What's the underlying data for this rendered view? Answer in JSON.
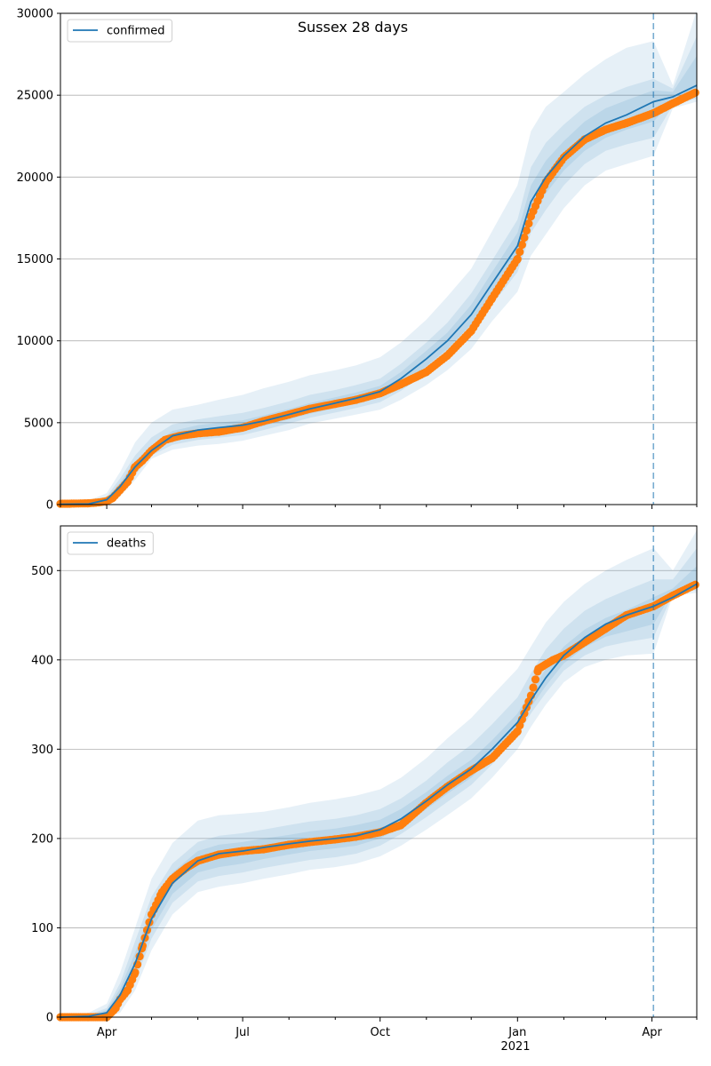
{
  "figure_title": "Sussex 28 days",
  "colors": {
    "model": "#1f77b4",
    "observed": "#ff7f0e",
    "band": "#1f77b4",
    "vline": "#1f77b4",
    "grid": "#b0b0b0"
  },
  "x_axis": {
    "ticks": [
      {
        "label": "Apr",
        "date": "2020-04-01"
      },
      {
        "label": "Jul",
        "date": "2020-07-01"
      },
      {
        "label": "Oct",
        "date": "2020-10-01"
      },
      {
        "label": "Jan",
        "date": "2021-01-01"
      },
      {
        "label": "Apr",
        "date": "2021-04-01"
      }
    ],
    "minor_ticks": [
      "2020-03-01",
      "2020-05-01",
      "2020-06-01",
      "2020-08-01",
      "2020-09-01",
      "2020-11-01",
      "2020-12-01",
      "2021-02-01",
      "2021-03-01",
      "2021-05-01"
    ],
    "year_label": "2021",
    "range": [
      "2020-03-01",
      "2021-05-01"
    ]
  },
  "chart_data": [
    {
      "type": "line",
      "legend": "confirmed",
      "legend_position": "upper-left",
      "grid": "horizontal",
      "ylim": [
        0,
        30000
      ],
      "yticks": [
        "0",
        "5000",
        "10000",
        "15000",
        "20000",
        "25000",
        "30000"
      ],
      "forecast_start": "2021-04-02",
      "model": {
        "x": [
          "2020-03-01",
          "2020-03-20",
          "2020-04-01",
          "2020-04-10",
          "2020-04-20",
          "2020-05-01",
          "2020-05-15",
          "2020-06-01",
          "2020-06-15",
          "2020-07-01",
          "2020-07-15",
          "2020-08-01",
          "2020-08-15",
          "2020-09-01",
          "2020-09-15",
          "2020-10-01",
          "2020-10-15",
          "2020-11-01",
          "2020-11-15",
          "2020-12-01",
          "2020-12-15",
          "2021-01-01",
          "2021-01-10",
          "2021-01-20",
          "2021-02-01",
          "2021-02-15",
          "2021-03-01",
          "2021-03-15",
          "2021-04-02",
          "2021-04-15",
          "2021-05-01"
        ],
        "y": [
          20,
          40,
          300,
          1100,
          2300,
          3300,
          4200,
          4550,
          4700,
          4850,
          5100,
          5500,
          5850,
          6200,
          6500,
          6900,
          7700,
          8900,
          10000,
          11600,
          13500,
          15800,
          18500,
          20000,
          21300,
          22500,
          23300,
          23800,
          24600,
          24900,
          25600
        ]
      },
      "bands": [
        {
          "lower": [
            0,
            5,
            50,
            500,
            1500,
            2800,
            3350,
            3600,
            3700,
            3900,
            4200,
            4550,
            4950,
            5250,
            5500,
            5800,
            6400,
            7300,
            8200,
            9500,
            11200,
            13000,
            15200,
            16500,
            18100,
            19500,
            20400,
            20800,
            21300,
            24200,
            24600
          ],
          "upper": [
            150,
            250,
            700,
            2000,
            3800,
            5000,
            5800,
            6100,
            6400,
            6700,
            7100,
            7500,
            7900,
            8200,
            8500,
            9000,
            9900,
            11300,
            12700,
            14400,
            16700,
            19500,
            22800,
            24300,
            25200,
            26300,
            27200,
            27900,
            28300,
            25600,
            30200
          ]
        },
        {
          "lower": [
            5,
            15,
            100,
            700,
            1800,
            3000,
            3650,
            3950,
            4080,
            4250,
            4550,
            4950,
            5300,
            5620,
            5900,
            6250,
            6950,
            8000,
            9000,
            10400,
            12200,
            14200,
            16600,
            18000,
            19500,
            20800,
            21600,
            22000,
            22400,
            24400,
            24800
          ],
          "upper": [
            80,
            150,
            500,
            1600,
            3000,
            4100,
            4900,
            5200,
            5400,
            5600,
            5900,
            6300,
            6700,
            7000,
            7300,
            7700,
            8600,
            9900,
            11100,
            12900,
            14900,
            17400,
            20600,
            22100,
            23200,
            24300,
            25000,
            25500,
            26000,
            25400,
            28600
          ]
        },
        {
          "lower": [
            10,
            25,
            180,
            900,
            2000,
            3150,
            3950,
            4250,
            4400,
            4550,
            4800,
            5200,
            5550,
            5900,
            6200,
            6550,
            7300,
            8450,
            9500,
            11000,
            12800,
            15000,
            17500,
            19000,
            20400,
            21600,
            22400,
            22900,
            23400,
            24600,
            25000
          ],
          "upper": [
            40,
            80,
            400,
            1350,
            2650,
            3600,
            4500,
            4850,
            5000,
            5150,
            5450,
            5850,
            6200,
            6550,
            6850,
            7250,
            8100,
            9400,
            10500,
            12200,
            14200,
            16600,
            19500,
            21000,
            22200,
            23400,
            24200,
            24700,
            25300,
            25200,
            27400
          ]
        }
      ],
      "observed": {
        "x": [
          "2020-03-01",
          "2020-03-10",
          "2020-03-20",
          "2020-03-25",
          "2020-04-01",
          "2020-04-05",
          "2020-04-10",
          "2020-04-15",
          "2020-04-20",
          "2020-04-25",
          "2020-05-01",
          "2020-05-10",
          "2020-05-20",
          "2020-06-01",
          "2020-06-15",
          "2020-07-01",
          "2020-07-15",
          "2020-08-01",
          "2020-08-15",
          "2020-09-01",
          "2020-09-15",
          "2020-10-01",
          "2020-10-15",
          "2020-11-01",
          "2020-11-15",
          "2020-12-01",
          "2020-12-15",
          "2021-01-01",
          "2021-01-10",
          "2021-01-20",
          "2021-02-01",
          "2021-02-15",
          "2021-03-01",
          "2021-03-15",
          "2021-04-02",
          "2021-04-15",
          "2021-05-01"
        ],
        "y": [
          50,
          60,
          80,
          120,
          200,
          400,
          900,
          1400,
          2300,
          2700,
          3300,
          3950,
          4200,
          4350,
          4450,
          4700,
          5100,
          5500,
          5850,
          6150,
          6400,
          6800,
          7350,
          8100,
          9100,
          10600,
          12600,
          15000,
          17600,
          19700,
          21200,
          22300,
          22900,
          23300,
          23900,
          24500,
          25200
        ]
      }
    },
    {
      "type": "line",
      "legend": "deaths",
      "legend_position": "upper-left",
      "grid": "horizontal",
      "ylim": [
        0,
        550
      ],
      "yticks": [
        "0",
        "100",
        "200",
        "300",
        "400",
        "500"
      ],
      "forecast_start": "2021-04-02",
      "model": {
        "x": [
          "2020-03-01",
          "2020-03-20",
          "2020-04-01",
          "2020-04-10",
          "2020-04-20",
          "2020-05-01",
          "2020-05-15",
          "2020-06-01",
          "2020-06-15",
          "2020-07-01",
          "2020-07-15",
          "2020-08-01",
          "2020-08-15",
          "2020-09-01",
          "2020-09-15",
          "2020-10-01",
          "2020-10-15",
          "2020-11-01",
          "2020-11-15",
          "2020-12-01",
          "2020-12-15",
          "2021-01-01",
          "2021-01-10",
          "2021-01-20",
          "2021-02-01",
          "2021-02-15",
          "2021-03-01",
          "2021-03-15",
          "2021-04-02",
          "2021-04-15",
          "2021-05-01"
        ],
        "y": [
          0,
          1,
          5,
          25,
          60,
          110,
          150,
          175,
          183,
          186,
          190,
          194,
          197,
          200,
          203,
          210,
          222,
          242,
          260,
          278,
          300,
          330,
          355,
          380,
          405,
          425,
          440,
          450,
          460,
          470,
          485
        ]
      },
      "bands": [
        {
          "lower": [
            0,
            0,
            0,
            5,
            30,
            75,
            115,
            140,
            146,
            150,
            155,
            160,
            165,
            168,
            172,
            180,
            192,
            210,
            226,
            245,
            268,
            300,
            325,
            350,
            375,
            392,
            400,
            405,
            407,
            472,
            475
          ],
          "upper": [
            2,
            5,
            15,
            50,
            100,
            155,
            195,
            220,
            226,
            228,
            230,
            235,
            240,
            244,
            248,
            255,
            268,
            290,
            312,
            335,
            360,
            390,
            415,
            442,
            465,
            485,
            500,
            512,
            525,
            500,
            545
          ]
        },
        {
          "lower": [
            0,
            0,
            2,
            12,
            40,
            88,
            128,
            152,
            158,
            162,
            167,
            172,
            176,
            179,
            183,
            192,
            205,
            224,
            241,
            260,
            283,
            315,
            340,
            363,
            388,
            405,
            415,
            420,
            425,
            474,
            478
          ],
          "upper": [
            1,
            3,
            10,
            38,
            85,
            135,
            172,
            196,
            203,
            206,
            210,
            215,
            219,
            222,
            226,
            233,
            245,
            265,
            285,
            305,
            328,
            358,
            385,
            412,
            435,
            455,
            468,
            478,
            490,
            490,
            525
          ]
        },
        {
          "lower": [
            0,
            0,
            3,
            18,
            48,
            98,
            138,
            162,
            168,
            172,
            177,
            182,
            186,
            189,
            192,
            200,
            213,
            233,
            250,
            268,
            291,
            322,
            347,
            371,
            396,
            414,
            426,
            432,
            440,
            476,
            480
          ],
          "upper": [
            1,
            2,
            8,
            32,
            72,
            122,
            162,
            186,
            193,
            196,
            200,
            204,
            208,
            211,
            215,
            221,
            233,
            252,
            270,
            288,
            310,
            340,
            365,
            390,
            415,
            434,
            447,
            456,
            470,
            480,
            505
          ]
        }
      ],
      "observed": {
        "x": [
          "2020-03-01",
          "2020-03-20",
          "2020-04-01",
          "2020-04-07",
          "2020-04-10",
          "2020-04-15",
          "2020-04-20",
          "2020-04-25",
          "2020-05-01",
          "2020-05-08",
          "2020-05-15",
          "2020-05-25",
          "2020-06-01",
          "2020-06-15",
          "2020-07-01",
          "2020-07-15",
          "2020-08-01",
          "2020-08-15",
          "2020-09-01",
          "2020-09-15",
          "2020-10-01",
          "2020-10-15",
          "2020-11-01",
          "2020-11-15",
          "2020-12-01",
          "2020-12-15",
          "2021-01-01",
          "2021-01-10",
          "2021-01-15",
          "2021-01-25",
          "2021-02-01",
          "2021-02-15",
          "2021-03-01",
          "2021-03-15",
          "2021-04-02",
          "2021-04-15",
          "2021-05-01"
        ],
        "y": [
          0,
          0,
          0,
          10,
          20,
          30,
          50,
          80,
          115,
          140,
          155,
          168,
          175,
          182,
          186,
          188,
          193,
          196,
          199,
          202,
          207,
          215,
          240,
          258,
          276,
          290,
          320,
          360,
          390,
          400,
          405,
          420,
          435,
          450,
          460,
          472,
          485
        ]
      }
    }
  ]
}
